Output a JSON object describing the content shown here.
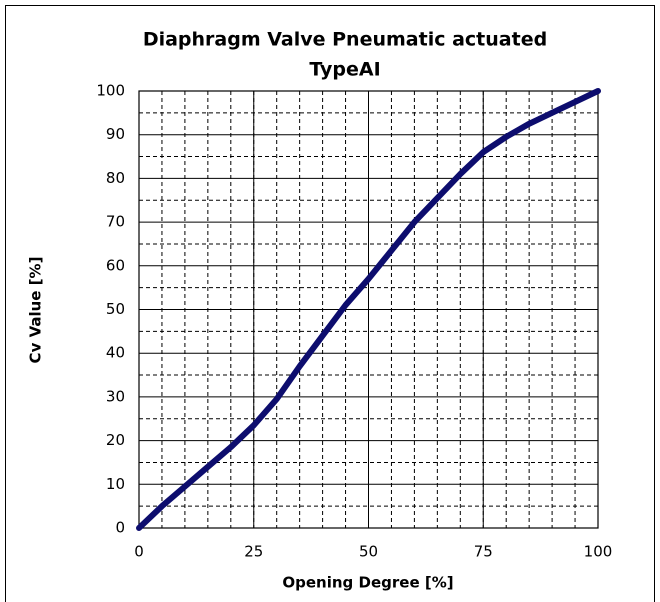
{
  "chart_data": {
    "type": "line",
    "title": [
      "Diaphragm Valve Pneumatic  actuated",
      "TypeAI"
    ],
    "x_label": "Opening Degree [%]",
    "y_label": "Cv Value [%]",
    "x": [
      0,
      5,
      10,
      15,
      20,
      25,
      30,
      35,
      40,
      45,
      50,
      55,
      60,
      65,
      70,
      75,
      80,
      85,
      90,
      95,
      100
    ],
    "series": [
      {
        "name": "Cv",
        "color": "#0d0d6e",
        "values": [
          0,
          5,
          9.5,
          14,
          18.5,
          23.5,
          29.5,
          37,
          44,
          51,
          57,
          63.5,
          70,
          75.5,
          81,
          86,
          89.5,
          92.5,
          95,
          97.5,
          100
        ]
      }
    ],
    "xlim": [
      0,
      100
    ],
    "xticks": [
      0,
      25,
      50,
      75,
      100
    ],
    "ylim": [
      0,
      100
    ],
    "yticks": [
      0,
      10,
      20,
      30,
      40,
      50,
      60,
      70,
      80,
      90,
      100
    ],
    "xgrid_step": 5,
    "grid": true
  }
}
